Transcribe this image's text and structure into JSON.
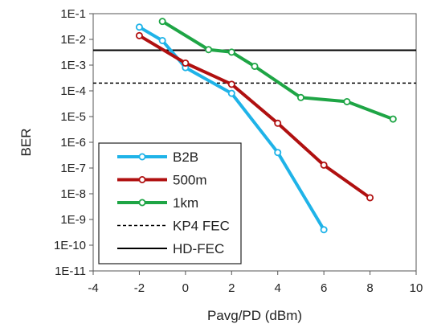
{
  "chart_data": {
    "type": "line",
    "xlabel": "Pavg/PD (dBm)",
    "ylabel": "BER",
    "xlim": [
      -4,
      10
    ],
    "x_ticks": [
      -4,
      -2,
      0,
      2,
      4,
      6,
      8,
      10
    ],
    "y_scale": "log",
    "ylim_exp": [
      -11,
      -1
    ],
    "y_tick_labels": [
      "1E-1",
      "1E-2",
      "1E-3",
      "1E-4",
      "1E-5",
      "1E-6",
      "1E-7",
      "1E-8",
      "1E-9",
      "1E-10",
      "1E-11"
    ],
    "grid": "none",
    "legend_position": "bottom-left",
    "series": [
      {
        "name": "B2B",
        "color": "#1fb3e8",
        "x": [
          -2,
          -1,
          0,
          2,
          4,
          6
        ],
        "y": [
          0.03,
          0.009,
          0.0008,
          8e-05,
          4e-07,
          4e-10
        ]
      },
      {
        "name": "500m",
        "color": "#b01010",
        "x": [
          -2,
          0,
          2,
          4,
          6,
          8
        ],
        "y": [
          0.014,
          0.0012,
          0.00018,
          5.5e-06,
          1.3e-07,
          7e-09
        ]
      },
      {
        "name": "1km",
        "color": "#1ea545",
        "x": [
          -1,
          1,
          2,
          3,
          5,
          7,
          9
        ],
        "y": [
          0.05,
          0.004,
          0.0032,
          0.0009,
          5.5e-05,
          3.8e-05,
          8e-06
        ]
      }
    ],
    "thresholds": [
      {
        "name": "KP4 FEC",
        "y": 0.0002,
        "style": "dashed",
        "color": "#000000"
      },
      {
        "name": "HD-FEC",
        "y": 0.0038,
        "style": "solid",
        "color": "#000000"
      }
    ]
  }
}
